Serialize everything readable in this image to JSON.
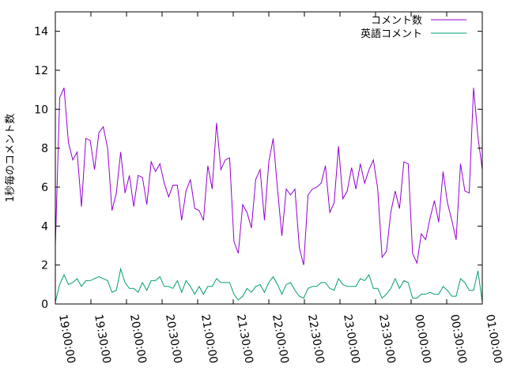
{
  "chart_data": {
    "type": "line",
    "ylabel": "1秒毎のコメント数",
    "ylim": [
      0,
      15
    ],
    "yticks": [
      0,
      2,
      4,
      6,
      8,
      10,
      12,
      14
    ],
    "xrange": [
      "19:00:00",
      "01:00:00"
    ],
    "xticks": [
      "19:00:00",
      "19:30:00",
      "20:00:00",
      "20:30:00",
      "21:00:00",
      "21:30:00",
      "22:00:00",
      "22:30:00",
      "23:00:00",
      "23:30:00",
      "00:00:00",
      "00:30:00",
      "01:00:00"
    ],
    "grid": false,
    "legend_position": "top-right",
    "sample_interval_minutes": 3,
    "series": [
      {
        "name": "コメント数",
        "color": "#9400d3",
        "values": [
          3.0,
          10.6,
          11.1,
          8.3,
          7.4,
          7.8,
          5.0,
          8.5,
          8.4,
          6.9,
          8.8,
          9.1,
          8.0,
          4.8,
          5.7,
          7.8,
          5.7,
          6.6,
          5.0,
          6.6,
          6.5,
          5.1,
          7.3,
          6.8,
          7.2,
          6.2,
          5.5,
          6.1,
          6.1,
          4.3,
          5.8,
          6.4,
          4.9,
          4.8,
          4.3,
          7.1,
          5.9,
          9.3,
          6.9,
          7.4,
          7.5,
          3.2,
          2.6,
          5.1,
          4.7,
          3.9,
          6.4,
          6.9,
          4.3,
          7.3,
          8.5,
          5.9,
          3.5,
          5.9,
          5.6,
          5.9,
          2.9,
          2.0,
          5.6,
          5.9,
          6.0,
          6.2,
          7.1,
          4.7,
          5.2,
          8.1,
          5.4,
          5.8,
          7.0,
          5.9,
          7.2,
          6.2,
          6.9,
          7.4,
          5.9,
          2.4,
          2.7,
          4.7,
          5.8,
          4.9,
          7.3,
          7.2,
          2.6,
          2.1,
          3.6,
          3.3,
          4.4,
          5.3,
          4.2,
          6.8,
          5.2,
          4.3,
          3.3,
          7.2,
          5.8,
          5.7,
          11.1,
          8.6,
          6.9
        ]
      },
      {
        "name": "英語コメント",
        "color": "#009e73",
        "values": [
          0.1,
          1.0,
          1.5,
          1.0,
          1.1,
          1.3,
          0.9,
          1.2,
          1.2,
          1.3,
          1.4,
          1.3,
          1.2,
          0.6,
          0.7,
          1.8,
          1.1,
          0.8,
          0.8,
          0.6,
          1.1,
          0.7,
          1.2,
          1.2,
          1.4,
          0.9,
          0.9,
          0.8,
          1.2,
          0.6,
          1.2,
          0.9,
          0.5,
          0.9,
          0.5,
          0.9,
          0.9,
          1.3,
          1.1,
          1.1,
          1.1,
          0.5,
          0.2,
          0.4,
          0.8,
          0.6,
          0.9,
          1.0,
          0.6,
          1.1,
          1.4,
          1.0,
          0.5,
          1.0,
          1.1,
          0.7,
          0.4,
          0.3,
          0.8,
          0.9,
          0.9,
          1.1,
          1.1,
          0.8,
          0.7,
          1.3,
          1.0,
          0.9,
          0.9,
          0.9,
          1.3,
          1.2,
          1.5,
          0.8,
          0.8,
          0.3,
          0.5,
          0.8,
          1.3,
          0.8,
          1.2,
          1.1,
          0.3,
          0.3,
          0.5,
          0.5,
          0.6,
          0.5,
          0.5,
          0.9,
          0.7,
          0.4,
          0.4,
          1.3,
          1.1,
          0.7,
          0.7,
          1.7,
          0.1
        ]
      }
    ]
  }
}
